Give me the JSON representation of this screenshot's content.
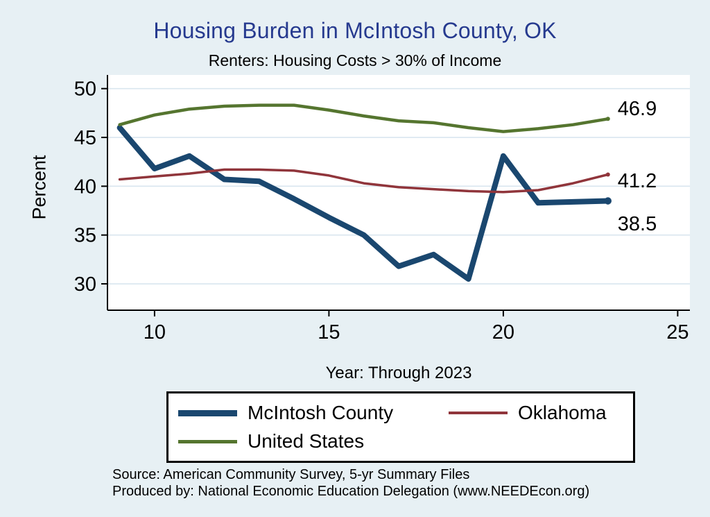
{
  "header": {
    "title": "Housing Burden in McIntosh County, OK",
    "subtitle": "Renters: Housing Costs > 30% of Income"
  },
  "axes": {
    "ylabel": "Percent",
    "xlabel": "Year: Through 2023"
  },
  "footer": {
    "source": "Source: American Community Survey, 5-yr Summary Files",
    "produced_by": "Produced by: National Economic Education Delegation (www.NEEDEcon.org)"
  },
  "colors": {
    "background": "#e7f0f4",
    "title": "#263a8f",
    "grid": "#d9e6ef",
    "axis": "#000000",
    "plot_background": "#ffffff"
  },
  "legend": {
    "position": "bottom",
    "items": [
      {
        "label": "McIntosh County",
        "color": "#1a476f",
        "thickness": 9
      },
      {
        "label": "Oklahoma",
        "color": "#90353b",
        "thickness": 4
      },
      {
        "label": "United States",
        "color": "#55752f",
        "thickness": 5
      }
    ]
  },
  "chart_data": {
    "type": "line",
    "title": "Housing Burden in McIntosh County, OK",
    "subtitle": "Renters: Housing Costs > 30% of Income",
    "xlabel": "Year: Through 2023",
    "ylabel": "Percent",
    "grid": true,
    "legend_position": "bottom",
    "x_unit": "year (2009-2023 shown as 9-23)",
    "x": [
      9,
      10,
      11,
      12,
      13,
      14,
      15,
      16,
      17,
      18,
      19,
      20,
      21,
      22,
      23
    ],
    "series": [
      {
        "name": "McIntosh County",
        "color": "#1a476f",
        "width": 8,
        "values": [
          46.0,
          41.8,
          43.1,
          40.7,
          40.5,
          38.7,
          36.8,
          35.0,
          31.8,
          33.0,
          30.5,
          43.1,
          38.3,
          38.4,
          38.5
        ],
        "end_label": "38.5",
        "end_label_value": 36.2
      },
      {
        "name": "Oklahoma",
        "color": "#90353b",
        "width": 3.5,
        "values": [
          40.7,
          41.0,
          41.3,
          41.7,
          41.7,
          41.6,
          41.1,
          40.3,
          39.9,
          39.7,
          39.5,
          39.4,
          39.6,
          40.3,
          41.2
        ],
        "end_label": "41.2",
        "end_label_value": 40.6
      },
      {
        "name": "United States",
        "color": "#55752f",
        "width": 4.5,
        "values": [
          46.3,
          47.3,
          47.9,
          48.2,
          48.3,
          48.3,
          47.8,
          47.2,
          46.7,
          46.5,
          46.0,
          45.6,
          45.9,
          46.3,
          46.9
        ],
        "end_label": "46.9",
        "end_label_value": 48.0
      }
    ],
    "xticks": [
      10,
      15,
      20,
      25
    ],
    "yticks": [
      30,
      35,
      40,
      45,
      50
    ],
    "xlim": [
      8.65,
      25.35
    ],
    "ylim": [
      27.3,
      51.4
    ]
  }
}
